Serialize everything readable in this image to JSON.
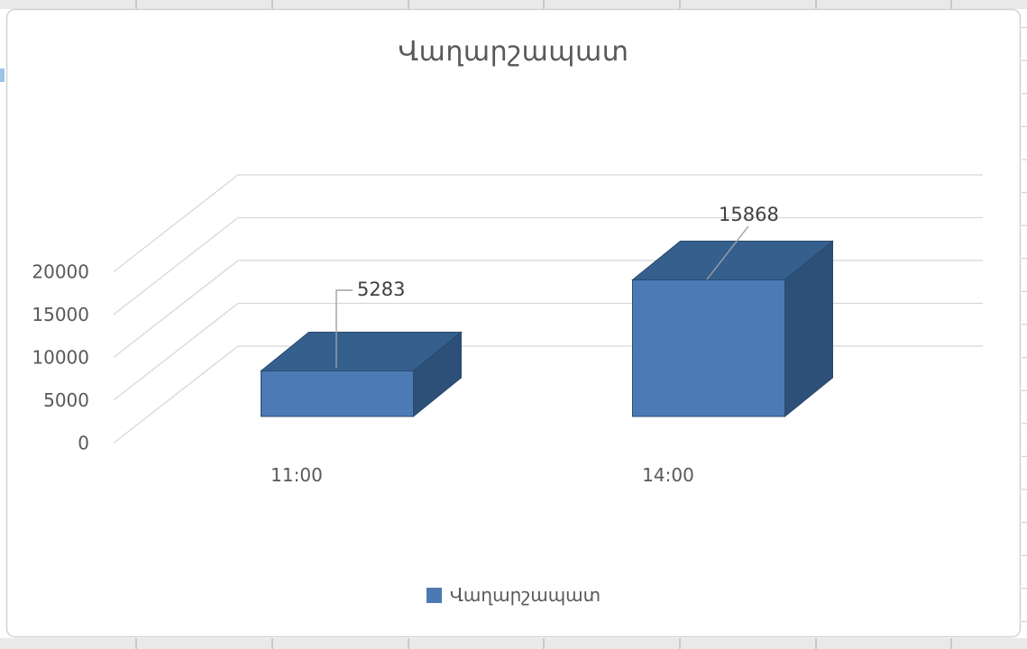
{
  "chart_data": {
    "type": "bar",
    "subtype": "3d-column",
    "title": "Վաղարշապատ",
    "categories": [
      "11:00",
      "14:00"
    ],
    "series": [
      {
        "name": "Վաղարշապատ",
        "values": [
          5283,
          15868
        ]
      }
    ],
    "data_labels": [
      "5283",
      "15868"
    ],
    "y_ticks": [
      "0",
      "5000",
      "10000",
      "15000",
      "20000"
    ],
    "ylim": [
      0,
      20000
    ],
    "xlabel": "",
    "ylabel": "",
    "grid": true,
    "legend": {
      "position": "bottom",
      "entries": [
        {
          "label": "Վաղարշապատ",
          "color": "#4a79b4"
        }
      ]
    }
  },
  "colors": {
    "bar_front": "#4b7ab5",
    "bar_top": "#35608e",
    "bar_side": "#2d5078",
    "bar_outline": "#2a4a6e",
    "gridline": "#d8d8d8",
    "axis_text": "#595959",
    "title_text": "#595959",
    "data_label_text": "#404040",
    "leader_line": "#a0a0a0",
    "chart_border": "#d2d2d2",
    "chart_bg": "#ffffff",
    "sheet_strip_bg": "#e9e9e9",
    "sheet_gridline": "#c9c9c9",
    "sheet_row_line": "#d5d5d5",
    "selection_accent": "#9dc3e6"
  }
}
